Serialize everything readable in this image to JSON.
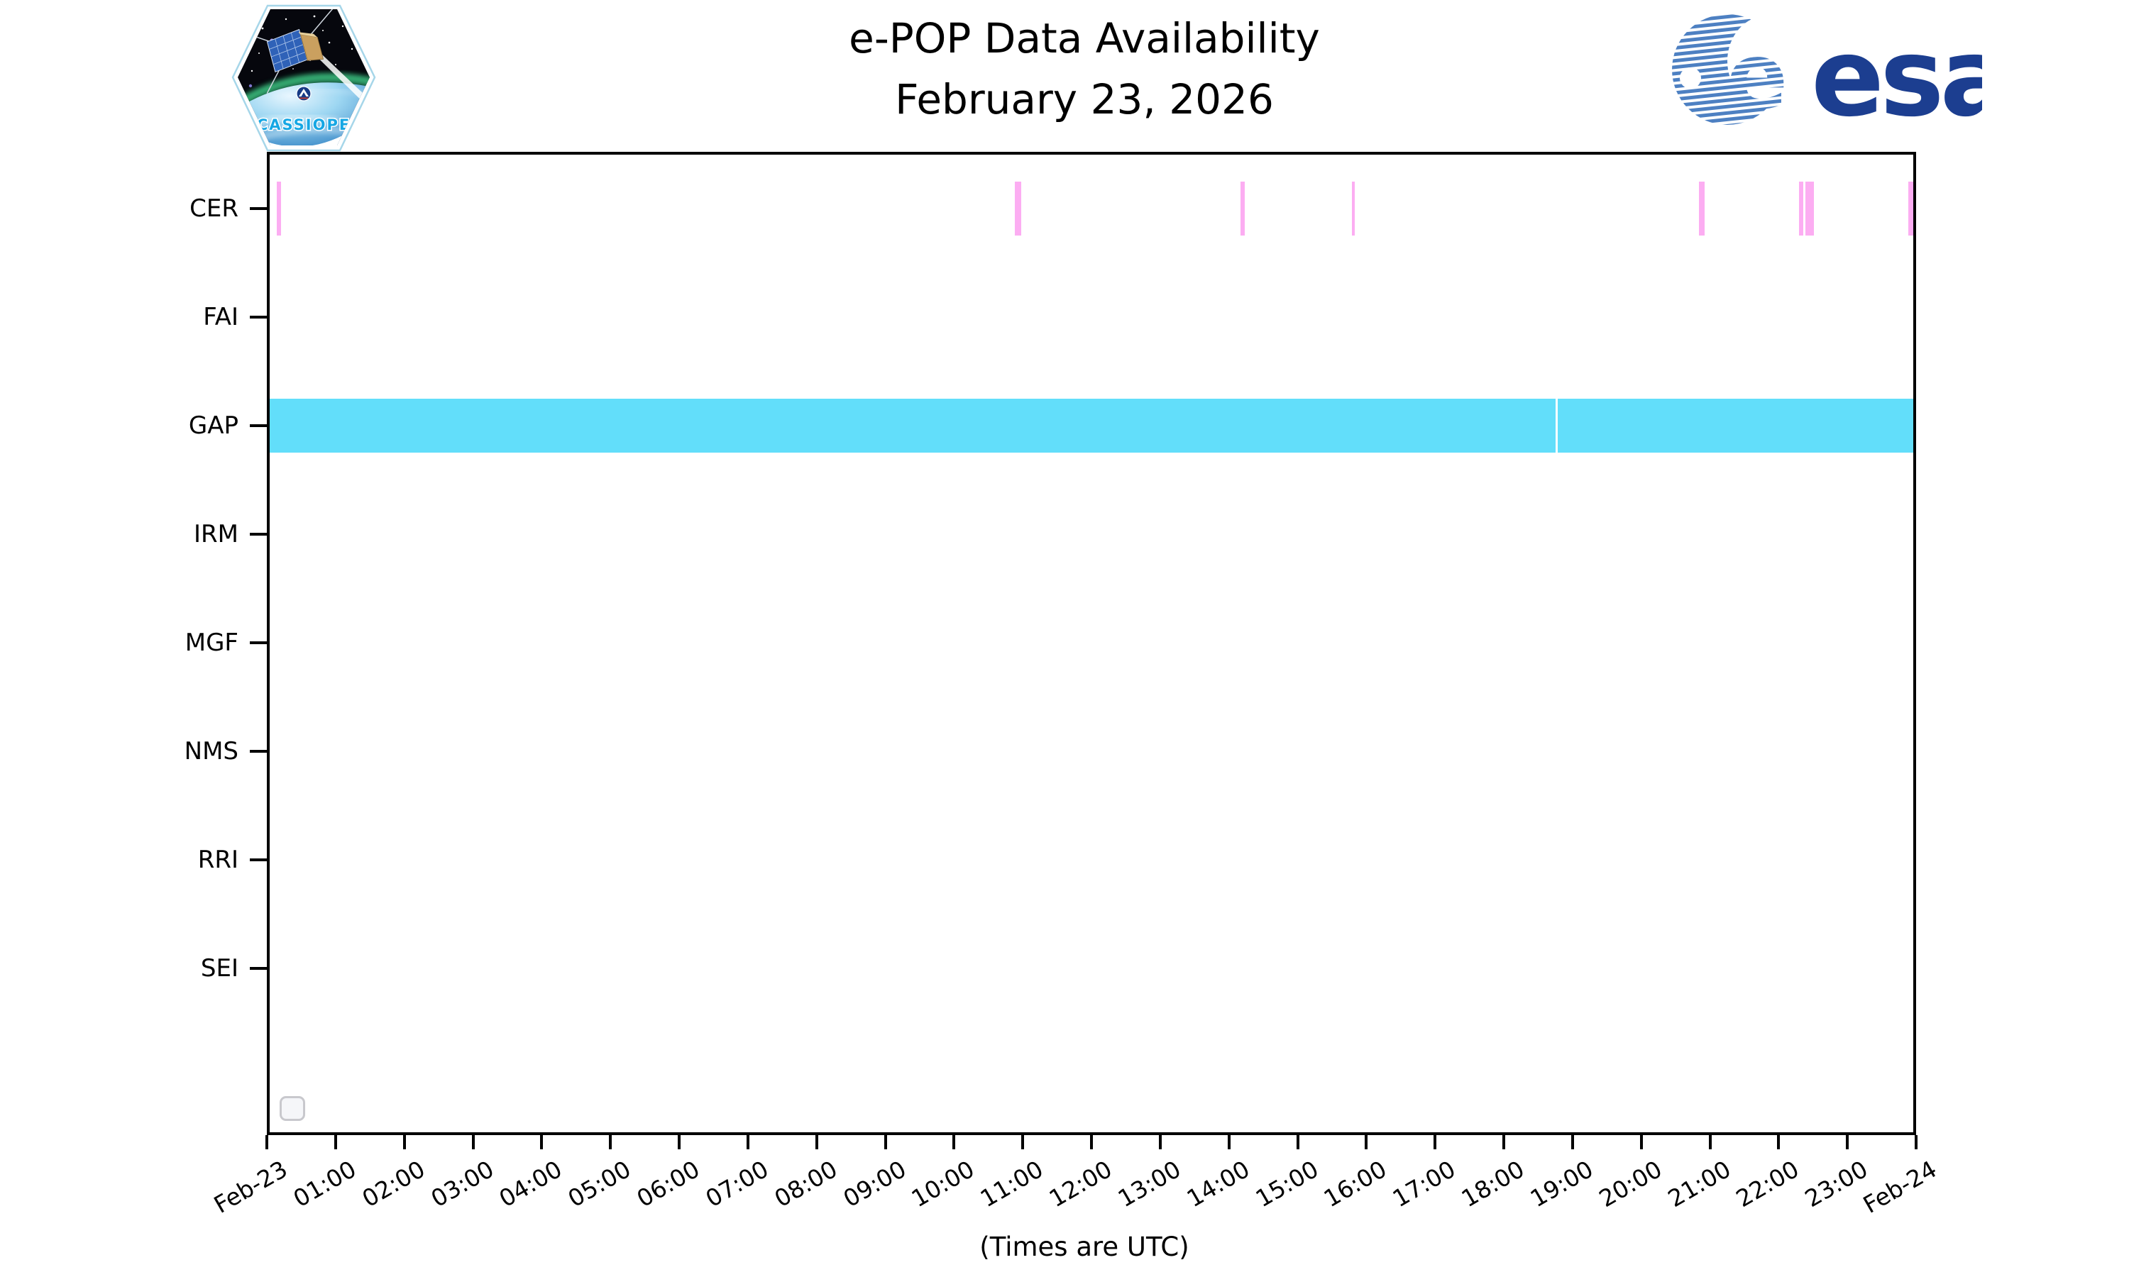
{
  "header": {
    "title": "e-POP Data Availability",
    "subtitle": "February 23, 2026"
  },
  "branding": {
    "cassiope_label": "CASSIOPE",
    "esa_text": "esa"
  },
  "colors": {
    "cer_bar": "#FCADF2",
    "gap_band": "#62DEFA",
    "axis": "#000000",
    "esa_navy": "#1C3E90",
    "esa_stripe_blue": "#4D80C2",
    "cassiope_text_blue": "#16A7E4"
  },
  "chart_data": {
    "type": "timeline-availability",
    "title": "e-POP Data Availability",
    "subtitle": "February 23, 2026",
    "xlabel": "(Times are UTC)",
    "rows": [
      "CER",
      "FAI",
      "GAP",
      "IRM",
      "MGF",
      "NMS",
      "RRI",
      "SEI"
    ],
    "x_axis": {
      "start": "Feb-23 00:00 UTC",
      "end": "Feb-24 00:00 UTC",
      "units": "decimal hours from Feb-23 00:00 UTC",
      "tick_labels": [
        "Feb-23",
        "01:00",
        "02:00",
        "03:00",
        "04:00",
        "05:00",
        "06:00",
        "07:00",
        "08:00",
        "09:00",
        "10:00",
        "11:00",
        "12:00",
        "13:00",
        "14:00",
        "15:00",
        "16:00",
        "17:00",
        "18:00",
        "19:00",
        "20:00",
        "21:00",
        "22:00",
        "23:00",
        "Feb-24"
      ]
    },
    "series": [
      {
        "row": "CER",
        "color": "#FCADF2",
        "segments_hours": [
          [
            0.14,
            0.21
          ],
          [
            10.88,
            10.98
          ],
          [
            14.17,
            14.23
          ],
          [
            15.79,
            15.83
          ],
          [
            20.84,
            20.92
          ],
          [
            22.3,
            22.36
          ],
          [
            22.39,
            22.51
          ],
          [
            23.89,
            23.99
          ]
        ]
      },
      {
        "row": "GAP",
        "color": "#62DEFA",
        "segments_hours": [
          [
            0.0,
            18.75
          ],
          [
            18.78,
            24.0
          ]
        ]
      }
    ],
    "rows_with_no_data": [
      "FAI",
      "IRM",
      "MGF",
      "NMS",
      "RRI",
      "SEI"
    ],
    "legend": "empty",
    "grid": false
  }
}
